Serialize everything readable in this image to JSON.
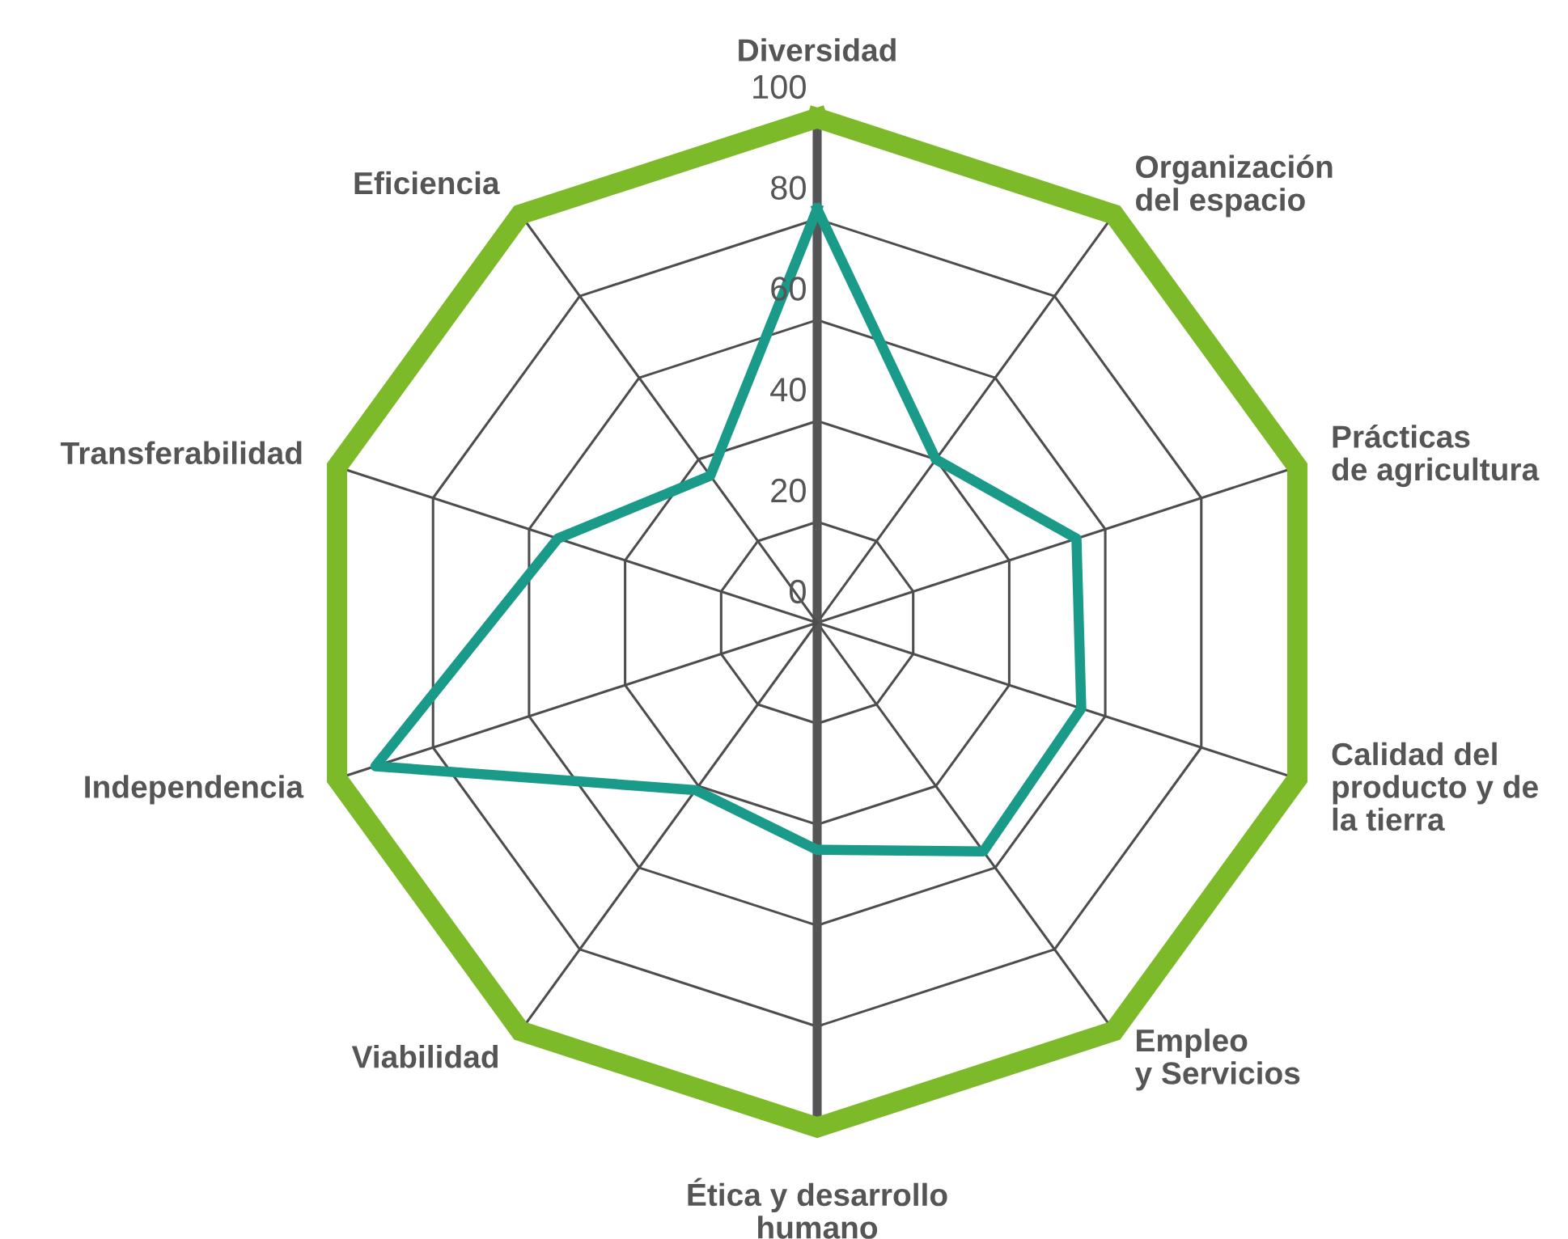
{
  "chart_data": {
    "type": "radar",
    "categories": [
      "Diversidad",
      "Organización\ndel espacio",
      "Prácticas\nde agricultura",
      "Calidad del\nproducto y de\nla tierra",
      "Empleo\ny Servicios",
      "Ética y desarrollo\nhumano",
      "Viabilidad",
      "Independencia",
      "Transferabilidad",
      "Eficiencia"
    ],
    "series": [
      {
        "color": "#1a9a88",
        "values": [
          82,
          40,
          54,
          55,
          56,
          45,
          41,
          92,
          54,
          36
        ]
      }
    ],
    "ylim": [
      0,
      100
    ],
    "yticks": [
      0,
      20,
      40,
      60,
      80,
      100
    ],
    "grid": true
  }
}
